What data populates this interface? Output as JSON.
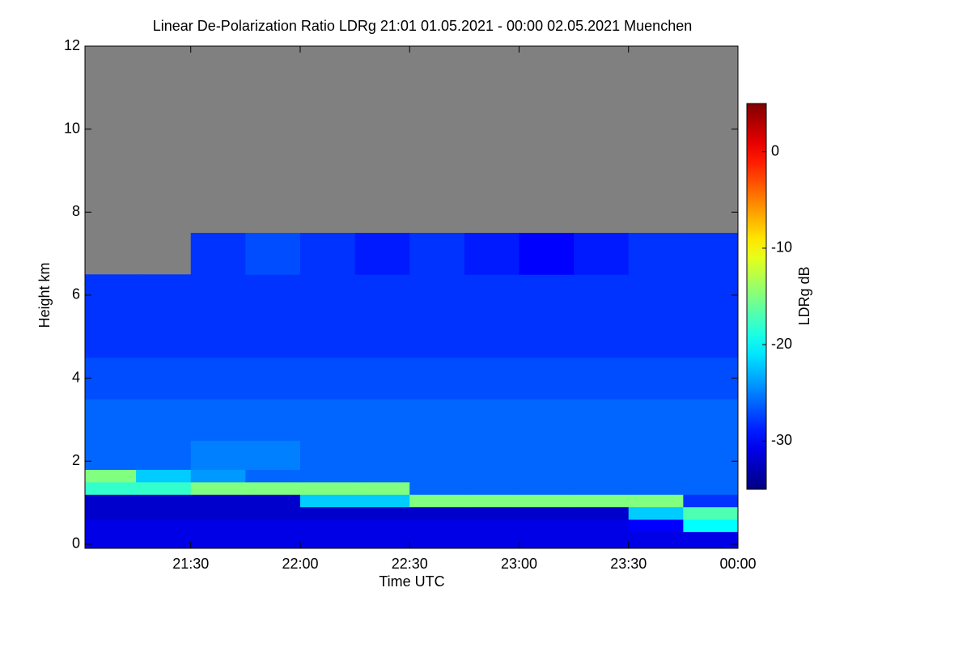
{
  "chart_data": {
    "type": "heatmap",
    "title": "Linear De-Polarization Ratio LDRg   21:01 01.05.2021 - 00:00 02.05.2021 Muenchen",
    "x_label": "Time UTC",
    "y_label": "Height km",
    "colorbar_label": "LDRg dB",
    "colormap": "jet",
    "nodata_color": "#808080",
    "xlim": [
      1,
      180
    ],
    "xticks": [
      {
        "value": 30,
        "label": "21:30"
      },
      {
        "value": 60,
        "label": "22:00"
      },
      {
        "value": 90,
        "label": "22:30"
      },
      {
        "value": 120,
        "label": "23:00"
      },
      {
        "value": 150,
        "label": "23:30"
      },
      {
        "value": 180,
        "label": "00:00"
      }
    ],
    "ylim": [
      -0.1,
      12
    ],
    "yticks": [
      0,
      2,
      4,
      6,
      8,
      10,
      12
    ],
    "clim": [
      -35,
      5
    ],
    "cticks": [
      -30,
      -20,
      -10,
      0
    ],
    "x_edges": [
      1,
      15,
      30,
      45,
      60,
      75,
      90,
      105,
      120,
      135,
      150,
      165,
      180
    ],
    "y_edges": [
      -0.1,
      0.3,
      0.6,
      0.9,
      1.2,
      1.5,
      1.8,
      2.5,
      3.5,
      4.5,
      5.5,
      6.5,
      7.5,
      12
    ],
    "z": [
      [
        -31,
        -31,
        -31,
        -31,
        -31,
        -31,
        -31,
        -31,
        -31,
        -31,
        -31,
        -31
      ],
      [
        -31,
        -31,
        -31,
        -31,
        -31,
        -31,
        -31,
        -31,
        -31,
        -31,
        -30,
        -20
      ],
      [
        -32,
        -32,
        -32,
        -32,
        -32,
        -32,
        -32,
        -32,
        -32,
        -32,
        -22,
        -17
      ],
      [
        -32,
        -32,
        -32,
        -32,
        -22,
        -22,
        -15,
        -15,
        -15,
        -15,
        -15,
        -28
      ],
      [
        -18,
        -18,
        -15,
        -15,
        -15,
        -15,
        -26,
        -26,
        -26,
        -26,
        -26,
        -26
      ],
      [
        -15,
        -22,
        -24,
        -26,
        -26,
        -26,
        -26,
        -26,
        -26,
        -26,
        -26,
        -26
      ],
      [
        -26,
        -26,
        -25,
        -25,
        -26,
        -26,
        -26,
        -26,
        -26,
        -26,
        -26,
        -26
      ],
      [
        -26,
        -26,
        -26,
        -26,
        -26,
        -26,
        -26,
        -26,
        -26,
        -26,
        -26,
        -26
      ],
      [
        -27,
        -27,
        -27,
        -27,
        -27,
        -27,
        -27,
        -27,
        -27,
        -27,
        -27,
        -27
      ],
      [
        -28,
        -28,
        -28,
        -28,
        -28,
        -28,
        -28,
        -28,
        -28,
        -28,
        -28,
        -28
      ],
      [
        -28,
        -28,
        -28,
        -28,
        -28,
        -28,
        -28,
        -28,
        -28,
        -28,
        -28,
        -28
      ],
      [
        null,
        null,
        -28,
        -27,
        -28,
        -29,
        -28,
        -29,
        -30,
        -29,
        -28,
        -28
      ],
      [
        null,
        null,
        null,
        null,
        null,
        null,
        null,
        null,
        null,
        null,
        null,
        null
      ]
    ]
  }
}
